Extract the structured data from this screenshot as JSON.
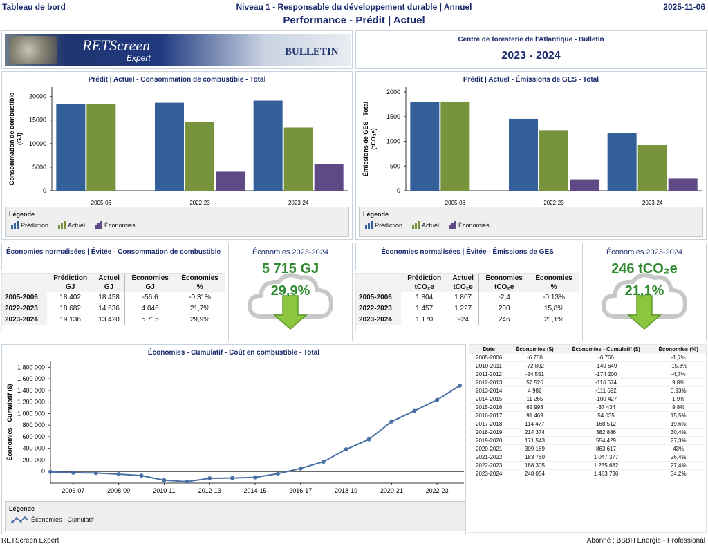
{
  "header": {
    "left": "Tableau de bord",
    "center": "Niveau 1 - Responsable du développement durable | Annuel",
    "date": "2025-11-06"
  },
  "subtitle": "Performance - Prédit | Actuel",
  "banner": {
    "logo_text": "RETScreen",
    "logo_sub": "Expert",
    "bulletin": "BULLETIN"
  },
  "center_info": {
    "org": "Centre de foresterie de l'Atlantique - Bulletin",
    "period": "2023 - 2024"
  },
  "colors": {
    "prediction": "#34609a",
    "actuel": "#77933c",
    "economies": "#5f4a86",
    "line": "#4a6fa5",
    "green": "#2f8a2f"
  },
  "legend_title": "Légende",
  "fuel_chart": {
    "title": "Prédit | Actuel - Consommation de combustible - Total",
    "ylabel": "Consommation de combustible",
    "yunit": "(GJ)",
    "ticks": [
      "0",
      "5000",
      "10000",
      "15000",
      "20000"
    ],
    "legend": [
      "Prédiction",
      "Actuel",
      "Économies"
    ]
  },
  "ghg_chart": {
    "title": "Prédit | Actuel - Émissions de GES - Total",
    "ylabel": "Émissions de GES - Total",
    "yunit": "(tCO₂e)",
    "ticks": [
      "0",
      "500",
      "1000",
      "1500",
      "2000"
    ],
    "legend": [
      "Prédiction",
      "Actuel",
      "Économies"
    ]
  },
  "fuel_table": {
    "title": "Économies normalisées | Évitée - Consommation de combustible",
    "headers": [
      "Prédiction",
      "Actuel",
      "Économies",
      "Économies"
    ],
    "units": [
      "GJ",
      "GJ",
      "GJ",
      "%"
    ],
    "rows": [
      {
        "year": "2005-2006",
        "cells": [
          "18 402",
          "18 458",
          "-56,6",
          "-0,31%"
        ]
      },
      {
        "year": "2022-2023",
        "cells": [
          "18 682",
          "14 636",
          "4 046",
          "21,7%"
        ]
      },
      {
        "year": "2023-2024",
        "cells": [
          "19 136",
          "13 420",
          "5 715",
          "29,9%"
        ]
      }
    ]
  },
  "fuel_savings": {
    "label": "Économies 2023-2024",
    "value": "5 715 GJ",
    "percent": "29,9%"
  },
  "ghg_table": {
    "title": "Économies normalisées | Évitée - Émissions de GES",
    "headers": [
      "Prédiction",
      "Actuel",
      "Économies",
      "Économies"
    ],
    "units": [
      "tCO₂e",
      "tCO₂e",
      "tCO₂e",
      "%"
    ],
    "rows": [
      {
        "year": "2005-2006",
        "cells": [
          "1 804",
          "1 807",
          "-2,4",
          "-0,13%"
        ]
      },
      {
        "year": "2022-2023",
        "cells": [
          "1 457",
          "1 227",
          "230",
          "15,8%"
        ]
      },
      {
        "year": "2023-2024",
        "cells": [
          "1 170",
          "924",
          "246",
          "21,1%"
        ]
      }
    ]
  },
  "ghg_savings": {
    "label": "Économies 2023-2024",
    "value": "246 tCO₂e",
    "percent": "21,1%"
  },
  "cum_chart": {
    "title": "Économies - Cumulatif - Coût en combustible - Total",
    "ylabel": "Économies - Cumulatif ($)",
    "ticks": [
      "0",
      "200 000",
      "400 000",
      "600 000",
      "800 000",
      "1 000 000",
      "1 200 000",
      "1 400 000",
      "1 600 000",
      "1 800 000"
    ],
    "legend": "Économies - Cumulatif",
    "xlabels": [
      "2006-07",
      "2008-09",
      "2010-11",
      "2012-13",
      "2014-15",
      "2016-17",
      "2018-19",
      "2020-21",
      "2022-23"
    ]
  },
  "cum_table": {
    "headers": [
      "Date",
      "Économies ($)",
      "Économies - Cumulatif ($)",
      "Économies (%)"
    ],
    "rows": [
      [
        "2005-2006",
        "-6 760",
        "-6 760",
        "-1,7%"
      ],
      [
        "2010-2011",
        "-72 802",
        "-149 649",
        "-15,3%"
      ],
      [
        "2011-2012",
        "-24 551",
        "-174 200",
        "-4,7%"
      ],
      [
        "2012-2013",
        "57 526",
        "-116 674",
        "9,8%"
      ],
      [
        "2013-2014",
        "4 982",
        "-111 692",
        "0,93%"
      ],
      [
        "2014-2015",
        "11 265",
        "-100 427",
        "1,9%"
      ],
      [
        "2015-2016",
        "62 993",
        "-37 434",
        "9,8%"
      ],
      [
        "2016-2017",
        "91 469",
        "54 035",
        "15,5%"
      ],
      [
        "2017-2018",
        "114 477",
        "168 512",
        "19,6%"
      ],
      [
        "2018-2019",
        "214 374",
        "382 886",
        "30,4%"
      ],
      [
        "2019-2020",
        "171 543",
        "554 429",
        "27,3%"
      ],
      [
        "2020-2021",
        "309 189",
        "863 617",
        "43%"
      ],
      [
        "2021-2022",
        "183 760",
        "1 047 377",
        "26,4%"
      ],
      [
        "2022-2023",
        "188 305",
        "1 235 682",
        "27,4%"
      ],
      [
        "2023-2024",
        "248 054",
        "1 483 736",
        "34,2%"
      ]
    ]
  },
  "chart_data": [
    {
      "type": "bar",
      "title": "Prédit | Actuel - Consommation de combustible - Total",
      "ylabel": "Consommation de combustible (GJ)",
      "categories": [
        "2005-06",
        "2022-23",
        "2023-24"
      ],
      "ylim": [
        0,
        22000
      ],
      "series": [
        {
          "name": "Prédiction",
          "values": [
            18402,
            18682,
            19136
          ]
        },
        {
          "name": "Actuel",
          "values": [
            18458,
            14636,
            13420
          ]
        },
        {
          "name": "Économies",
          "values": [
            -56.6,
            4046,
            5715
          ]
        }
      ]
    },
    {
      "type": "bar",
      "title": "Prédit | Actuel - Émissions de GES - Total",
      "ylabel": "Émissions de GES - Total (tCO₂e)",
      "categories": [
        "2005-06",
        "2022-23",
        "2023-24"
      ],
      "ylim": [
        0,
        2100
      ],
      "series": [
        {
          "name": "Prédiction",
          "values": [
            1804,
            1457,
            1170
          ]
        },
        {
          "name": "Actuel",
          "values": [
            1807,
            1227,
            924
          ]
        },
        {
          "name": "Économies",
          "values": [
            -2.4,
            230,
            246
          ]
        }
      ]
    },
    {
      "type": "line",
      "title": "Économies - Cumulatif - Coût en combustible - Total",
      "ylabel": "Économies - Cumulatif ($)",
      "x": [
        "2005-06",
        "2006-07",
        "2007-08",
        "2008-09",
        "2009-10",
        "2010-11",
        "2011-12",
        "2012-13",
        "2013-14",
        "2014-15",
        "2015-16",
        "2016-17",
        "2017-18",
        "2018-19",
        "2019-20",
        "2020-21",
        "2021-22",
        "2022-23",
        "2023-24"
      ],
      "ylim": [
        -200000,
        1800000
      ],
      "series": [
        {
          "name": "Économies - Cumulatif",
          "values": [
            -6760,
            -20000,
            -25000,
            -45000,
            -70000,
            -149649,
            -174200,
            -116674,
            -111692,
            -100427,
            -37434,
            54035,
            168512,
            382886,
            554429,
            863617,
            1047377,
            1235682,
            1483736
          ]
        }
      ]
    }
  ],
  "footer": {
    "left": "RETScreen Expert",
    "right": "Abonné : BSBH Energie - Professional"
  }
}
